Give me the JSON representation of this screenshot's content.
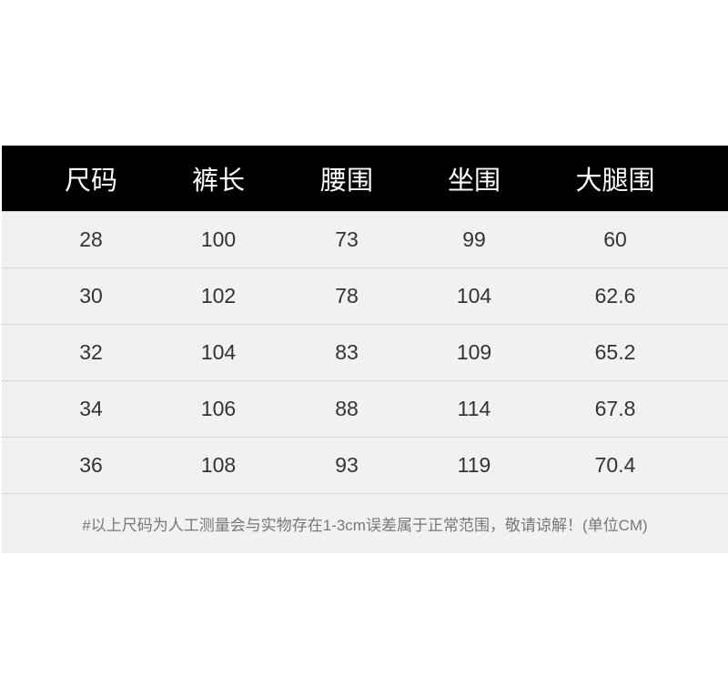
{
  "table": {
    "headers": [
      "尺码",
      "裤长",
      "腰围",
      "坐围",
      "大腿围"
    ],
    "rows": [
      [
        "28",
        "100",
        "73",
        "99",
        "60"
      ],
      [
        "30",
        "102",
        "78",
        "104",
        "62.6"
      ],
      [
        "32",
        "104",
        "83",
        "109",
        "65.2"
      ],
      [
        "34",
        "106",
        "88",
        "114",
        "67.8"
      ],
      [
        "36",
        "108",
        "93",
        "119",
        "70.4"
      ]
    ],
    "note": "#以上尺码为人工测量会与实物存在1-3cm误差属于正常范围，敬请谅解！(单位CM)"
  },
  "colors": {
    "header_bg": "#000000",
    "row_bg": "#f1f1f1",
    "header_text": "#ffffff"
  }
}
